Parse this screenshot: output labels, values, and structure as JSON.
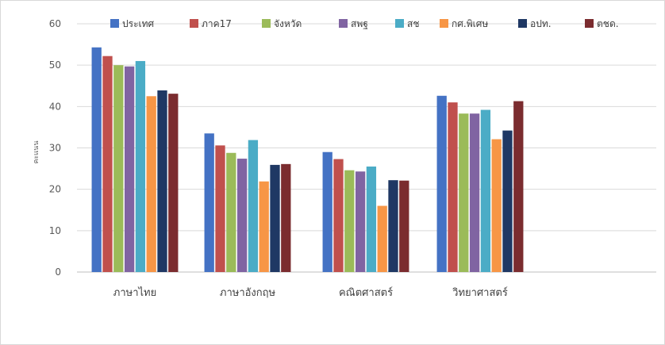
{
  "chart_data": {
    "type": "bar",
    "title": "",
    "xlabel": "",
    "ylabel": "คะแนน",
    "ylim": [
      0,
      60
    ],
    "yticks": [
      0,
      10,
      20,
      30,
      40,
      50,
      60
    ],
    "grid": true,
    "legend_position": "top",
    "categories": [
      "ภาษาไทย",
      "ภาษาอังกฤษ",
      "คณิตศาสตร์",
      "วิทยาศาสตร์"
    ],
    "series": [
      {
        "name": "ประเทศ",
        "color": "#4472C4",
        "values": [
          54.3,
          33.5,
          29.0,
          42.6
        ]
      },
      {
        "name": "ภาค17",
        "color": "#C0504D",
        "values": [
          52.2,
          30.6,
          27.3,
          41.0
        ]
      },
      {
        "name": "จังหวัด",
        "color": "#9BBB59",
        "values": [
          50.0,
          28.8,
          24.6,
          38.3
        ]
      },
      {
        "name": "สพฐ",
        "color": "#8064A2",
        "values": [
          49.7,
          27.4,
          24.3,
          38.3
        ]
      },
      {
        "name": "สช",
        "color": "#4BACC6",
        "values": [
          51.0,
          31.9,
          25.5,
          39.2
        ]
      },
      {
        "name": "กศ.พิเศษ",
        "color": "#F79646",
        "values": [
          42.5,
          21.9,
          16.0,
          32.1
        ]
      },
      {
        "name": "อปท.",
        "color": "#1F3864",
        "values": [
          43.9,
          25.9,
          22.2,
          34.2
        ]
      },
      {
        "name": "ตชด.",
        "color": "#7B2C2F",
        "values": [
          43.1,
          26.1,
          22.1,
          41.3
        ]
      }
    ]
  }
}
